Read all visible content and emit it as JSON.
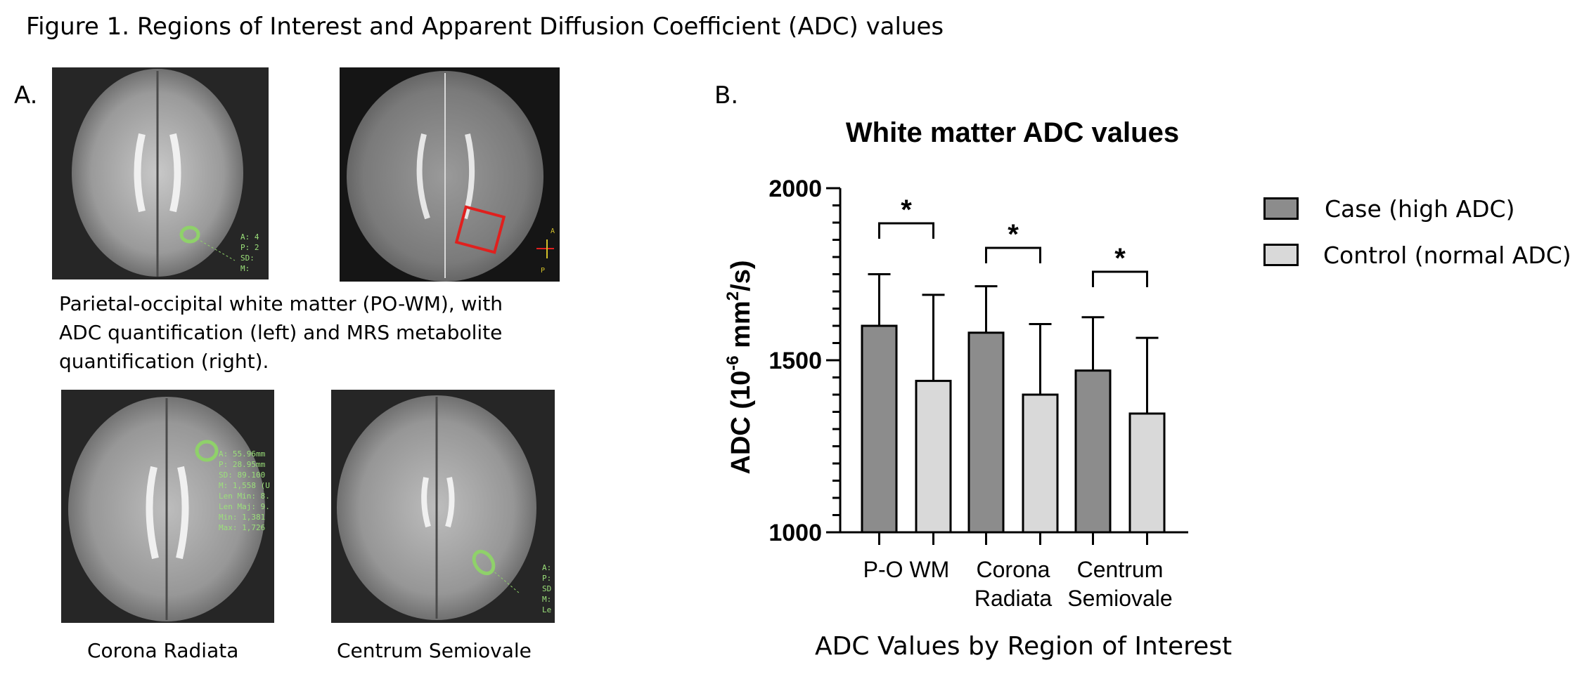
{
  "figure": {
    "title": "Figure 1. Regions of Interest and Apparent Diffusion Coefficient (ADC) values",
    "panel_a_label": "A.",
    "panel_b_label": "B."
  },
  "panel_a": {
    "caption_lines": [
      "Parietal-occipital white matter (PO-WM), with",
      "ADC quantification (left) and MRS metabolite",
      "quantification (right)."
    ],
    "image_captions": {
      "corona": "Corona Radiata",
      "centrum": "Centrum Semiovale"
    },
    "colors": {
      "roi_circle": "#8fd16a",
      "roi_box": "#e0201e",
      "overlay_text": "#9be07a"
    }
  },
  "panel_b": {
    "subtitle": "ADC Values by Region of Interest"
  },
  "chart_data": {
    "type": "bar",
    "title": "White matter ADC values",
    "ylabel_main": "ADC (10",
    "ylabel_sup": "-6",
    "ylabel_rest": " mm",
    "ylabel_sup2": "2",
    "ylabel_tail": "/s)",
    "ylim": [
      1000,
      2000
    ],
    "yticks": [
      "1000",
      "1500",
      "2000"
    ],
    "categories": [
      [
        "P-O WM"
      ],
      [
        "Corona",
        "Radiata"
      ],
      [
        "Centrum",
        "Semiovale"
      ]
    ],
    "series": [
      {
        "name": "Case (high ADC)",
        "color": "#8c8c8c",
        "values": [
          1600,
          1580,
          1470
        ],
        "error": [
          150,
          135,
          155
        ]
      },
      {
        "name": "Control (normal ADC)",
        "color": "#d9d9d9",
        "values": [
          1440,
          1400,
          1345
        ],
        "error": [
          250,
          205,
          220
        ]
      }
    ],
    "significance": [
      "*",
      "*",
      "*"
    ],
    "legend_position": "right",
    "grid": false
  }
}
